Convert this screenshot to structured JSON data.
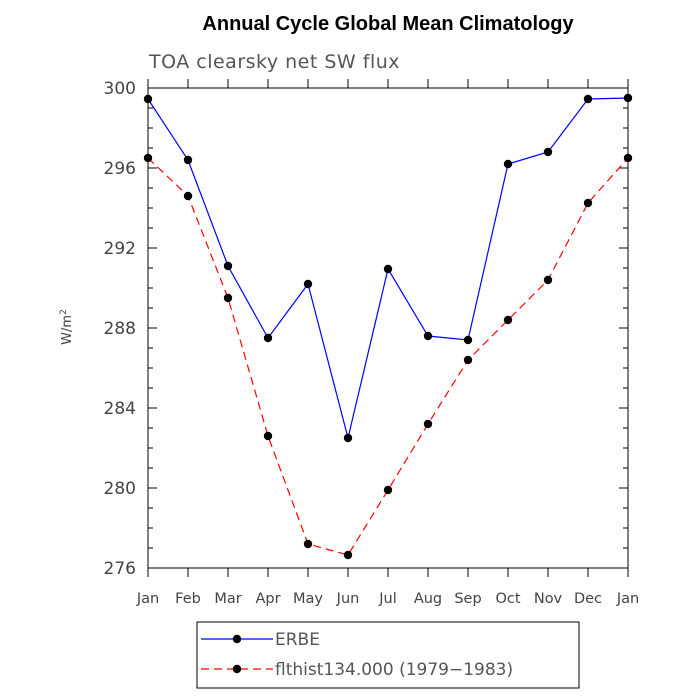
{
  "chart_data": {
    "type": "line",
    "title": "Annual Cycle Global Mean Climatology",
    "subtitle": "TOA clearsky net SW flux",
    "ylabel_main": "W/m",
    "ylabel_sup": "2",
    "categories": [
      "Jan",
      "Feb",
      "Mar",
      "Apr",
      "May",
      "Jun",
      "Jul",
      "Aug",
      "Sep",
      "Oct",
      "Nov",
      "Dec",
      "Jan"
    ],
    "ylim": [
      276,
      300
    ],
    "yticks": [
      "276",
      "280",
      "284",
      "288",
      "292",
      "296",
      "300"
    ],
    "series": [
      {
        "name": "ERBE",
        "color": "#0000ff",
        "dash": "solid",
        "values": [
          299.45,
          296.4,
          291.1,
          287.5,
          290.2,
          282.5,
          290.95,
          287.6,
          287.4,
          296.2,
          296.8,
          299.45,
          299.5
        ]
      },
      {
        "name": "flthist134.000 (1979−1983)",
        "color": "#ff0000",
        "dash": "dashed",
        "values": [
          296.5,
          294.6,
          289.5,
          282.6,
          277.2,
          276.65,
          279.9,
          283.2,
          286.4,
          288.4,
          290.4,
          294.25,
          296.5
        ]
      }
    ],
    "legend_position": "bottom",
    "grid": false
  }
}
